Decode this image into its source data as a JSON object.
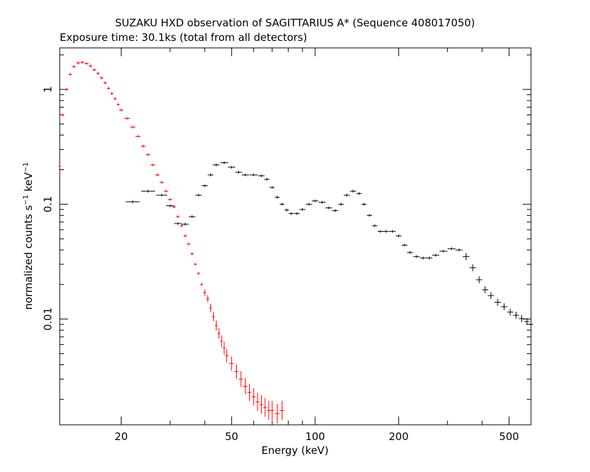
{
  "chart_data": {
    "type": "scatter",
    "title": "SUZAKU HXD observation of SAGITTARIUS A* (Sequence 408017050)",
    "subtitle": "Exposure time: 30.1ks (total from all detectors)",
    "xlabel": "Energy (keV)",
    "ylabel": "normalized counts s",
    "ylabel_sup1": "−1",
    "ylabel_mid": " keV",
    "ylabel_sup2": "−1",
    "xscale": "log",
    "yscale": "log",
    "xlim": [
      12,
      600
    ],
    "ylim": [
      0.0012,
      2.3
    ],
    "x_ticks": [
      {
        "value": 20,
        "label": "20"
      },
      {
        "value": 50,
        "label": "50"
      },
      {
        "value": 100,
        "label": "100"
      },
      {
        "value": 200,
        "label": "200"
      },
      {
        "value": 500,
        "label": "500"
      }
    ],
    "y_ticks": [
      {
        "value": 0.01,
        "label": "0.01"
      },
      {
        "value": 0.1,
        "label": "0.1"
      },
      {
        "value": 1,
        "label": "1"
      }
    ],
    "grid": false,
    "legend": "none",
    "series": [
      {
        "color": "#ff0000",
        "comment_units": "x: keV (approx), y: counts s^-1 keV^-1 (approx)",
        "points": [
          [
            12.0,
            0.215
          ],
          [
            12.3,
            0.6
          ],
          [
            12.7,
            1.0
          ],
          [
            13.1,
            1.35
          ],
          [
            13.5,
            1.58
          ],
          [
            14.0,
            1.7
          ],
          [
            14.5,
            1.72
          ],
          [
            15.0,
            1.68
          ],
          [
            15.5,
            1.6
          ],
          [
            16.0,
            1.48
          ],
          [
            16.5,
            1.38
          ],
          [
            17.0,
            1.26
          ],
          [
            17.5,
            1.14
          ],
          [
            18.0,
            1.02
          ],
          [
            18.5,
            0.92
          ],
          [
            19.0,
            0.83
          ],
          [
            19.5,
            0.74
          ],
          [
            20.0,
            0.66
          ],
          [
            21.0,
            0.56
          ],
          [
            22.0,
            0.47
          ],
          [
            23.0,
            0.39
          ],
          [
            24.0,
            0.32
          ],
          [
            25.0,
            0.27
          ],
          [
            26.0,
            0.22
          ],
          [
            27.0,
            0.18
          ],
          [
            28.0,
            0.155
          ],
          [
            29.0,
            0.13
          ],
          [
            30.0,
            0.11
          ],
          [
            31.0,
            0.095
          ],
          [
            32.0,
            0.078
          ],
          [
            33.0,
            0.065
          ],
          [
            34.0,
            0.053
          ],
          [
            35.0,
            0.045
          ],
          [
            36.0,
            0.037
          ],
          [
            37.0,
            0.03
          ],
          [
            38.0,
            0.025
          ],
          [
            39.0,
            0.02
          ],
          [
            40.0,
            0.017
          ],
          [
            41.0,
            0.015
          ],
          [
            42.0,
            0.0125
          ],
          [
            43.0,
            0.0105
          ],
          [
            44.0,
            0.0088
          ],
          [
            45.0,
            0.0075
          ],
          [
            46.0,
            0.0064
          ],
          [
            47.0,
            0.0056
          ],
          [
            48.0,
            0.0048
          ],
          [
            50.0,
            0.0041
          ],
          [
            52.0,
            0.0035
          ],
          [
            54.0,
            0.003
          ],
          [
            56.0,
            0.0026
          ],
          [
            58.0,
            0.0023
          ],
          [
            60.0,
            0.0021
          ],
          [
            62.0,
            0.0019
          ],
          [
            64.0,
            0.0018
          ],
          [
            66.0,
            0.0017
          ],
          [
            68.0,
            0.0016
          ],
          [
            70.0,
            0.0016
          ],
          [
            73.0,
            0.0015
          ],
          [
            76.0,
            0.0016
          ]
        ]
      },
      {
        "color": "#000000",
        "comment_units": "x: keV (approx), y: counts s^-1 keV^-1 (approx)",
        "points": [
          [
            22.0,
            0.105
          ],
          [
            25.0,
            0.13
          ],
          [
            28.0,
            0.12
          ],
          [
            30.0,
            0.097
          ],
          [
            32.0,
            0.068
          ],
          [
            34.0,
            0.067
          ],
          [
            36.0,
            0.078
          ],
          [
            38.0,
            0.12
          ],
          [
            40.0,
            0.145
          ],
          [
            42.0,
            0.18
          ],
          [
            44.0,
            0.22
          ],
          [
            47.0,
            0.23
          ],
          [
            50.0,
            0.21
          ],
          [
            53.0,
            0.19
          ],
          [
            56.0,
            0.18
          ],
          [
            60.0,
            0.18
          ],
          [
            64.0,
            0.177
          ],
          [
            67.0,
            0.165
          ],
          [
            70.0,
            0.14
          ],
          [
            73.0,
            0.115
          ],
          [
            76.0,
            0.1
          ],
          [
            79.0,
            0.089
          ],
          [
            82.0,
            0.083
          ],
          [
            86.0,
            0.083
          ],
          [
            90.0,
            0.09
          ],
          [
            95.0,
            0.1
          ],
          [
            100.0,
            0.107
          ],
          [
            106.0,
            0.104
          ],
          [
            112.0,
            0.093
          ],
          [
            118.0,
            0.088
          ],
          [
            124.0,
            0.1
          ],
          [
            130.0,
            0.12
          ],
          [
            137.0,
            0.13
          ],
          [
            144.0,
            0.124
          ],
          [
            150.0,
            0.1
          ],
          [
            157.0,
            0.08
          ],
          [
            164.0,
            0.065
          ],
          [
            172.0,
            0.058
          ],
          [
            180.0,
            0.058
          ],
          [
            190.0,
            0.058
          ],
          [
            200.0,
            0.053
          ],
          [
            210.0,
            0.044
          ],
          [
            220.0,
            0.038
          ],
          [
            232.0,
            0.035
          ],
          [
            245.0,
            0.034
          ],
          [
            258.0,
            0.034
          ],
          [
            272.0,
            0.036
          ],
          [
            290.0,
            0.039
          ],
          [
            310.0,
            0.041
          ],
          [
            330.0,
            0.04
          ],
          [
            350.0,
            0.035
          ],
          [
            370.0,
            0.028
          ],
          [
            390.0,
            0.022
          ],
          [
            410.0,
            0.018
          ],
          [
            430.0,
            0.016
          ],
          [
            455.0,
            0.014
          ],
          [
            480.0,
            0.0128
          ],
          [
            505.0,
            0.0115
          ],
          [
            530.0,
            0.0108
          ],
          [
            555.0,
            0.0101
          ],
          [
            580.0,
            0.0095
          ],
          [
            600.0,
            0.009
          ]
        ]
      }
    ]
  }
}
